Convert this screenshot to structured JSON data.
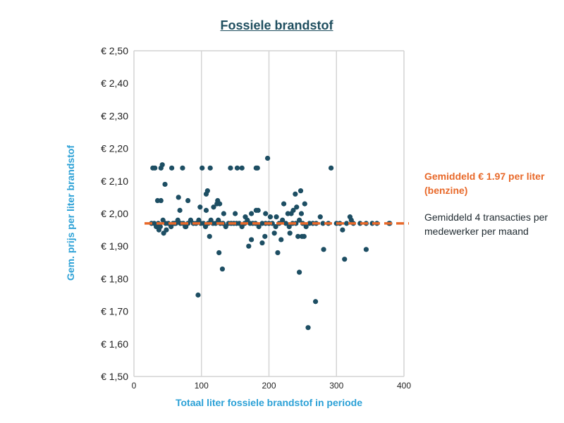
{
  "chart_data": {
    "type": "scatter",
    "title": "Fossiele brandstof",
    "xlabel": "Totaal liter fossiele brandstof in periode",
    "ylabel": "Gem. prijs per liter brandstof",
    "xlim": [
      0,
      400
    ],
    "ylim": [
      1.5,
      2.5
    ],
    "x_ticks": [
      0,
      100,
      200,
      300,
      400
    ],
    "x_tick_labels": [
      "0",
      "100",
      "200",
      "300",
      "400"
    ],
    "y_ticks": [
      1.5,
      1.6,
      1.7,
      1.8,
      1.9,
      2.0,
      2.1,
      2.2,
      2.3,
      2.4,
      2.5
    ],
    "y_tick_labels": [
      "€ 1,50",
      "€ 1,60",
      "€ 1,70",
      "€ 1,80",
      "€ 1,90",
      "€ 2,00",
      "€ 2,10",
      "€ 2,20",
      "€ 2,30",
      "€ 2,40",
      "€ 2,50"
    ],
    "grid": "vertical",
    "reference_line": {
      "y": 1.97,
      "label": "Gemiddeld € 1.97 per liter (benzine)"
    },
    "annotation": "Gemiddeld 4 transacties per medewerker per maand",
    "points": [
      [
        28,
        2.14
      ],
      [
        31,
        2.14
      ],
      [
        40,
        2.14
      ],
      [
        42,
        2.15
      ],
      [
        56,
        2.14
      ],
      [
        72,
        2.14
      ],
      [
        101,
        2.14
      ],
      [
        113,
        2.14
      ],
      [
        143,
        2.14
      ],
      [
        153,
        2.14
      ],
      [
        160,
        2.14
      ],
      [
        181,
        2.14
      ],
      [
        183,
        2.14
      ],
      [
        198,
        2.17
      ],
      [
        292,
        2.14
      ],
      [
        46,
        2.09
      ],
      [
        109,
        2.07
      ],
      [
        107,
        2.06
      ],
      [
        239,
        2.06
      ],
      [
        247,
        2.07
      ],
      [
        124,
        2.04
      ],
      [
        127,
        2.03
      ],
      [
        222,
        2.03
      ],
      [
        35,
        2.04
      ],
      [
        40,
        2.04
      ],
      [
        66,
        2.05
      ],
      [
        80,
        2.04
      ],
      [
        98,
        2.02
      ],
      [
        68,
        2.01
      ],
      [
        107,
        2.01
      ],
      [
        118,
        2.02
      ],
      [
        123,
        2.03
      ],
      [
        181,
        2.01
      ],
      [
        184,
        2.01
      ],
      [
        236,
        2.01
      ],
      [
        241,
        2.02
      ],
      [
        253,
        2.03
      ],
      [
        133,
        2.0
      ],
      [
        150,
        2.0
      ],
      [
        165,
        1.99
      ],
      [
        174,
        2.0
      ],
      [
        195,
        2.0
      ],
      [
        202,
        1.99
      ],
      [
        211,
        1.99
      ],
      [
        228,
        2.0
      ],
      [
        233,
        2.0
      ],
      [
        248,
        2.0
      ],
      [
        276,
        1.99
      ],
      [
        320,
        1.99
      ],
      [
        322,
        1.98
      ],
      [
        288,
        1.97
      ],
      [
        30,
        1.97
      ],
      [
        33,
        1.96
      ],
      [
        36,
        1.97
      ],
      [
        39,
        1.96
      ],
      [
        43,
        1.98
      ],
      [
        47,
        1.97
      ],
      [
        51,
        1.97
      ],
      [
        55,
        1.96
      ],
      [
        58,
        1.97
      ],
      [
        62,
        1.97
      ],
      [
        65,
        1.98
      ],
      [
        69,
        1.97
      ],
      [
        73,
        1.97
      ],
      [
        77,
        1.96
      ],
      [
        80,
        1.97
      ],
      [
        84,
        1.98
      ],
      [
        88,
        1.97
      ],
      [
        92,
        1.97
      ],
      [
        96,
        1.98
      ],
      [
        99,
        1.97
      ],
      [
        103,
        1.97
      ],
      [
        106,
        1.96
      ],
      [
        110,
        1.97
      ],
      [
        114,
        1.98
      ],
      [
        117,
        1.97
      ],
      [
        121,
        1.97
      ],
      [
        125,
        1.98
      ],
      [
        128,
        1.97
      ],
      [
        132,
        1.97
      ],
      [
        136,
        1.96
      ],
      [
        140,
        1.97
      ],
      [
        144,
        1.97
      ],
      [
        148,
        1.97
      ],
      [
        152,
        1.97
      ],
      [
        156,
        1.97
      ],
      [
        160,
        1.96
      ],
      [
        164,
        1.97
      ],
      [
        168,
        1.98
      ],
      [
        172,
        1.97
      ],
      [
        176,
        1.97
      ],
      [
        180,
        1.97
      ],
      [
        185,
        1.96
      ],
      [
        190,
        1.97
      ],
      [
        195,
        1.97
      ],
      [
        200,
        1.97
      ],
      [
        205,
        1.97
      ],
      [
        210,
        1.96
      ],
      [
        215,
        1.97
      ],
      [
        220,
        1.98
      ],
      [
        225,
        1.97
      ],
      [
        230,
        1.96
      ],
      [
        235,
        1.97
      ],
      [
        240,
        1.97
      ],
      [
        245,
        1.98
      ],
      [
        250,
        1.97
      ],
      [
        255,
        1.96
      ],
      [
        260,
        1.97
      ],
      [
        265,
        1.97
      ],
      [
        270,
        1.97
      ],
      [
        280,
        1.97
      ],
      [
        300,
        1.97
      ],
      [
        305,
        1.97
      ],
      [
        315,
        1.97
      ],
      [
        325,
        1.97
      ],
      [
        335,
        1.97
      ],
      [
        344,
        1.97
      ],
      [
        353,
        1.97
      ],
      [
        360,
        1.97
      ],
      [
        378,
        1.97
      ],
      [
        26,
        1.97
      ],
      [
        48,
        1.95
      ],
      [
        37,
        1.95
      ],
      [
        44,
        1.94
      ],
      [
        60,
        1.97
      ],
      [
        76,
        1.96
      ],
      [
        112,
        1.93
      ],
      [
        170,
        1.9
      ],
      [
        174,
        1.92
      ],
      [
        190,
        1.91
      ],
      [
        194,
        1.93
      ],
      [
        208,
        1.94
      ],
      [
        213,
        1.88
      ],
      [
        218,
        1.92
      ],
      [
        231,
        1.94
      ],
      [
        243,
        1.93
      ],
      [
        249,
        1.93
      ],
      [
        252,
        1.93
      ],
      [
        281,
        1.89
      ],
      [
        309,
        1.95
      ],
      [
        312,
        1.86
      ],
      [
        344,
        1.89
      ],
      [
        379,
        1.97
      ],
      [
        126,
        1.88
      ],
      [
        131,
        1.83
      ],
      [
        245,
        1.82
      ],
      [
        95,
        1.75
      ],
      [
        269,
        1.73
      ],
      [
        258,
        1.65
      ]
    ]
  },
  "colors": {
    "title": "#1f4e5f",
    "axis_title": "#2aa0d6",
    "accent": "#e8692a",
    "point": "#1d4e63",
    "grid": "#d4d4d4"
  }
}
